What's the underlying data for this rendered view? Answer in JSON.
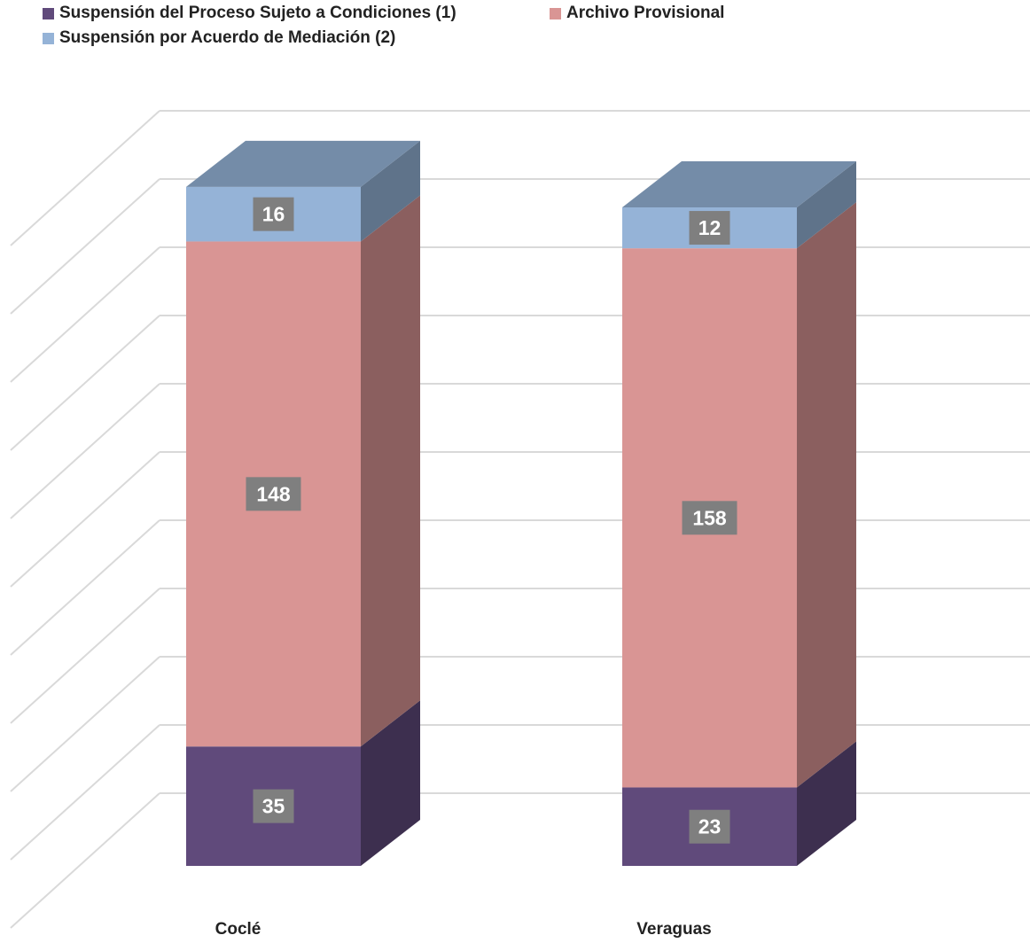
{
  "chart_data": {
    "type": "bar",
    "stacked": true,
    "three_d": true,
    "categories": [
      "Coclé",
      "Veraguas"
    ],
    "series": [
      {
        "name": "Suspensión del Proceso Sujeto a Condiciones (1)",
        "values": [
          35,
          23
        ],
        "color": "#604A7B"
      },
      {
        "name": "Archivo Provisional",
        "values": [
          148,
          158
        ],
        "color": "#D99594"
      },
      {
        "name": "Suspensión por Acuerdo de Mediación (2)",
        "values": [
          16,
          12
        ],
        "color": "#95B3D7"
      }
    ],
    "title": "",
    "xlabel": "",
    "ylabel": "",
    "ylim": [
      0,
      200
    ],
    "grid": true,
    "legend_position": "top-left",
    "data_label_background": "#7F7F7F"
  }
}
